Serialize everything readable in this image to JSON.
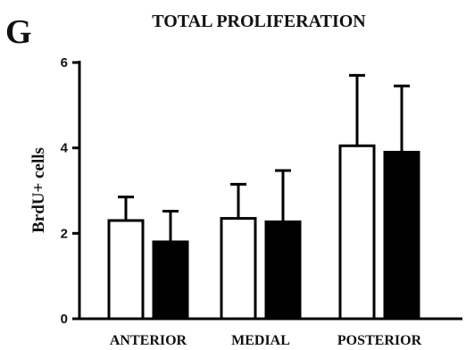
{
  "panel_letter": "G",
  "chart_data": {
    "type": "bar",
    "title": "TOTAL PROLIFERATION",
    "xlabel": "",
    "ylabel": "BrdU+ cells",
    "categories": [
      "ANTERIOR",
      "MEDIAL",
      "POSTERIOR"
    ],
    "ylim": [
      0,
      6
    ],
    "yticks": [
      0,
      2,
      4,
      6
    ],
    "grid": false,
    "legend": "none",
    "series": [
      {
        "values": [
          2.3,
          2.35,
          4.05
        ],
        "errors": [
          0.55,
          0.8,
          1.65
        ],
        "color": "#ffffff",
        "edge": "#000000"
      },
      {
        "values": [
          1.8,
          2.27,
          3.9
        ],
        "errors": [
          0.72,
          1.2,
          1.55
        ],
        "color": "#000000",
        "edge": "#000000"
      }
    ]
  }
}
